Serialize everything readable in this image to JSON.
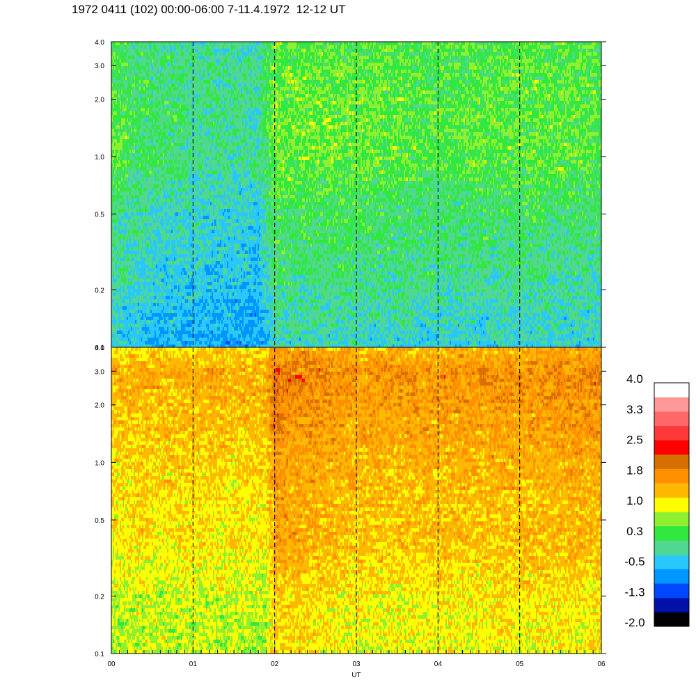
{
  "header": {
    "title": "1972 0411 (102) 00:00-06:00 7-11.4.1972  12-12 UT"
  },
  "chart_data": {
    "type": "heatmap",
    "title": "1972 0411 (102) 00:00-06:00 7-11.4.1972  12-12 UT",
    "xlabel": "UT",
    "ylabel": "",
    "x_range": [
      0,
      6
    ],
    "x_ticks": [
      "00",
      "01",
      "02",
      "03",
      "04",
      "05",
      "06"
    ],
    "dashed_lines_at": [
      1,
      2,
      3,
      4,
      5
    ],
    "y_scale": "log",
    "panels": [
      {
        "name": "upper",
        "ylim": [
          0.1,
          4.0
        ],
        "y_ticks": [
          {
            "value": 0.1,
            "label": "0.1"
          },
          {
            "value": 0.2,
            "label": "0.2"
          },
          {
            "value": 0.5,
            "label": "0.5"
          },
          {
            "value": 1.0,
            "label": "1.0"
          },
          {
            "value": 2.0,
            "label": "2.0"
          },
          {
            "value": 3.0,
            "label": "3.0"
          },
          {
            "value": 4.0,
            "label": "4.0"
          }
        ],
        "level_profile": [
          {
            "y": 0.1,
            "level": -0.2
          },
          {
            "y": 0.2,
            "level": 0.05
          },
          {
            "y": 0.35,
            "level": 0.2
          },
          {
            "y": 0.5,
            "level": 0.25
          },
          {
            "y": 0.8,
            "level": 0.45
          },
          {
            "y": 1.0,
            "level": 0.55
          },
          {
            "y": 2.0,
            "level": 0.55
          },
          {
            "y": 4.0,
            "level": 0.45
          }
        ],
        "time_profile": [
          {
            "x": 0.0,
            "offset": 0.0
          },
          {
            "x": 0.5,
            "offset": -0.25
          },
          {
            "x": 1.0,
            "offset": -0.35
          },
          {
            "x": 1.8,
            "offset": -0.45
          },
          {
            "x": 2.0,
            "offset": 0.15
          },
          {
            "x": 3.0,
            "offset": 0.1
          },
          {
            "x": 4.0,
            "offset": 0.0
          },
          {
            "x": 5.0,
            "offset": 0.05
          },
          {
            "x": 6.0,
            "offset": 0.0
          }
        ]
      },
      {
        "name": "lower",
        "ylim": [
          0.1,
          4.0
        ],
        "y_ticks": [
          {
            "value": 0.1,
            "label": "0.1"
          },
          {
            "value": 0.2,
            "label": "0.2"
          },
          {
            "value": 0.5,
            "label": "0.5"
          },
          {
            "value": 1.0,
            "label": "1.0"
          },
          {
            "value": 2.0,
            "label": "2.0"
          },
          {
            "value": 3.0,
            "label": "3.0"
          },
          {
            "value": 4.0,
            "label": "4.0"
          }
        ],
        "level_profile": [
          {
            "y": 0.1,
            "level": 1.05
          },
          {
            "y": 0.2,
            "level": 1.15
          },
          {
            "y": 0.4,
            "level": 1.45
          },
          {
            "y": 0.6,
            "level": 1.45
          },
          {
            "y": 1.0,
            "level": 1.55
          },
          {
            "y": 2.0,
            "level": 1.75
          },
          {
            "y": 3.0,
            "level": 1.85
          },
          {
            "y": 4.0,
            "level": 1.5
          }
        ],
        "time_profile": [
          {
            "x": 0.0,
            "offset": -0.15
          },
          {
            "x": 1.0,
            "offset": -0.1
          },
          {
            "x": 1.9,
            "offset": -0.15
          },
          {
            "x": 2.0,
            "offset": 0.35
          },
          {
            "x": 3.0,
            "offset": 0.1
          },
          {
            "x": 4.0,
            "offset": 0.1
          },
          {
            "x": 5.0,
            "offset": 0.15
          },
          {
            "x": 6.0,
            "offset": 0.2
          }
        ]
      }
    ],
    "colorbar": {
      "labels": [
        "4.0",
        "3.3",
        "2.5",
        "1.8",
        "1.0",
        "0.3",
        "-0.5",
        "-1.3",
        "-2.0"
      ],
      "levels": [
        -2.0,
        -1.65,
        -1.3,
        -0.9,
        -0.5,
        -0.1,
        0.3,
        0.65,
        1.0,
        1.4,
        1.8,
        2.15,
        2.5,
        2.9,
        3.3,
        3.65,
        4.0
      ],
      "colors": [
        "#000000",
        "#0010a8",
        "#0048ff",
        "#0096ff",
        "#28c8ff",
        "#50d890",
        "#30e840",
        "#90f030",
        "#ffff00",
        "#ffb800",
        "#ff9000",
        "#d87000",
        "#ff0000",
        "#ff3838",
        "#ff6868",
        "#ff9898",
        "#ffffff"
      ]
    }
  }
}
